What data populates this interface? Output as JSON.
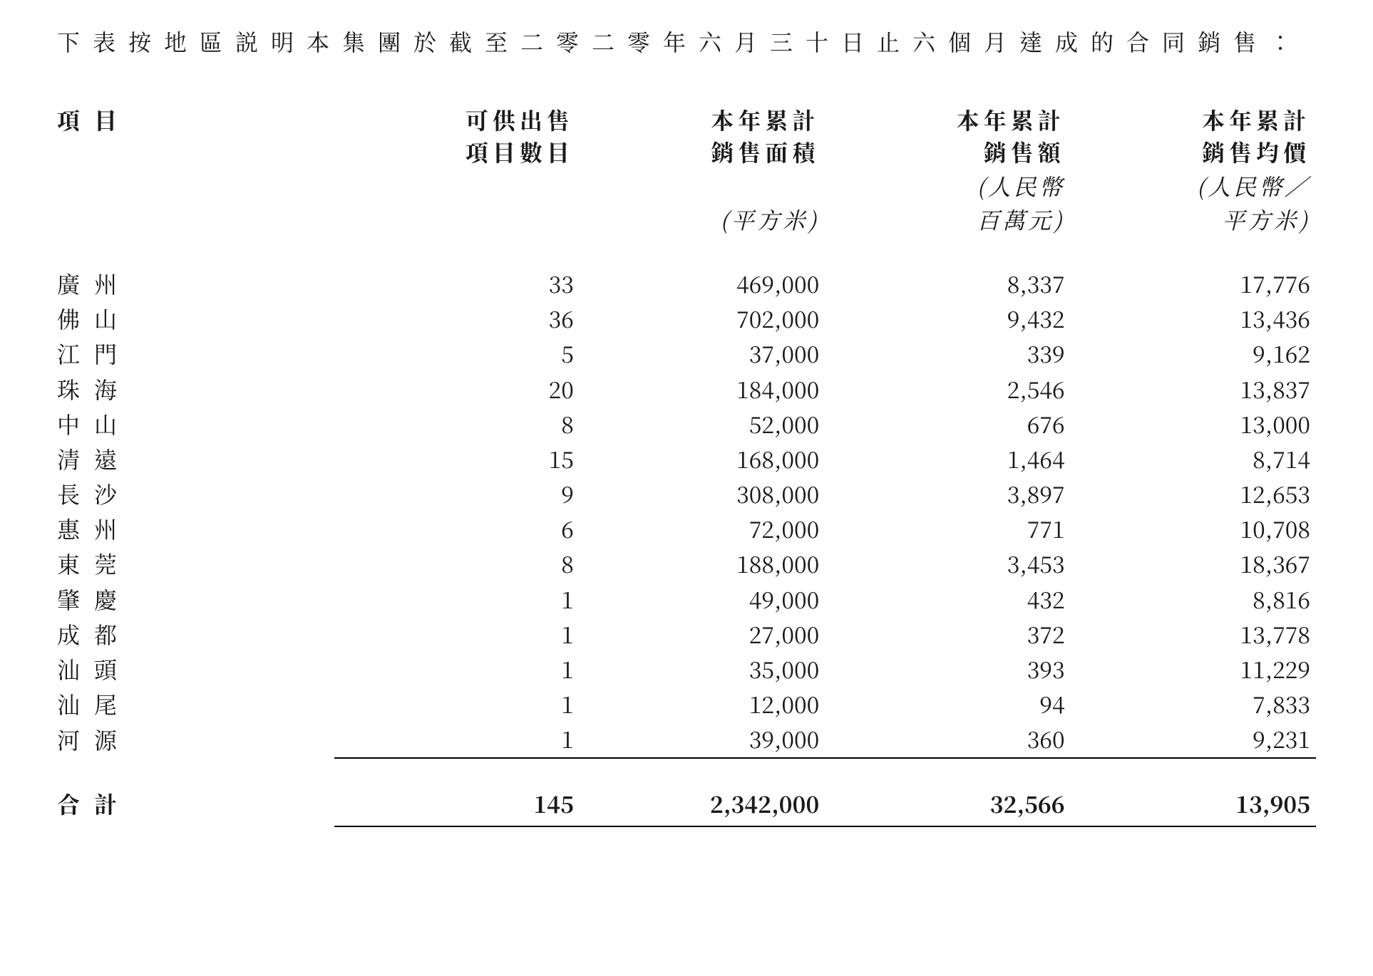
{
  "intro": "下表按地區説明本集團於截至二零二零年六月三十日止六個月達成的合同銷售：",
  "table": {
    "row_header": "項目",
    "columns": [
      {
        "line1": "可供出售",
        "line2": "項目數目",
        "unit1": "",
        "unit2": ""
      },
      {
        "line1": "本年累計",
        "line2": "銷售面積",
        "unit1": "",
        "unit2": "(平方米)"
      },
      {
        "line1": "本年累計",
        "line2": "銷售額",
        "unit1": "(人民幣",
        "unit2": "百萬元)"
      },
      {
        "line1": "本年累計",
        "line2": "銷售均價",
        "unit1": "(人民幣／",
        "unit2": "平方米)"
      }
    ],
    "rows": [
      {
        "name": "廣州",
        "v": [
          "33",
          "469,000",
          "8,337",
          "17,776"
        ]
      },
      {
        "name": "佛山",
        "v": [
          "36",
          "702,000",
          "9,432",
          "13,436"
        ]
      },
      {
        "name": "江門",
        "v": [
          "5",
          "37,000",
          "339",
          "9,162"
        ]
      },
      {
        "name": "珠海",
        "v": [
          "20",
          "184,000",
          "2,546",
          "13,837"
        ]
      },
      {
        "name": "中山",
        "v": [
          "8",
          "52,000",
          "676",
          "13,000"
        ]
      },
      {
        "name": "清遠",
        "v": [
          "15",
          "168,000",
          "1,464",
          "8,714"
        ]
      },
      {
        "name": "長沙",
        "v": [
          "9",
          "308,000",
          "3,897",
          "12,653"
        ]
      },
      {
        "name": "惠州",
        "v": [
          "6",
          "72,000",
          "771",
          "10,708"
        ]
      },
      {
        "name": "東莞",
        "v": [
          "8",
          "188,000",
          "3,453",
          "18,367"
        ]
      },
      {
        "name": "肇慶",
        "v": [
          "1",
          "49,000",
          "432",
          "8,816"
        ]
      },
      {
        "name": "成都",
        "v": [
          "1",
          "27,000",
          "372",
          "13,778"
        ]
      },
      {
        "name": "汕頭",
        "v": [
          "1",
          "35,000",
          "393",
          "11,229"
        ]
      },
      {
        "name": "汕尾",
        "v": [
          "1",
          "12,000",
          "94",
          "7,833"
        ]
      },
      {
        "name": "河源",
        "v": [
          "1",
          "39,000",
          "360",
          "9,231"
        ]
      }
    ],
    "total": {
      "name": "合計",
      "v": [
        "145",
        "2,342,000",
        "32,566",
        "13,905"
      ]
    }
  }
}
